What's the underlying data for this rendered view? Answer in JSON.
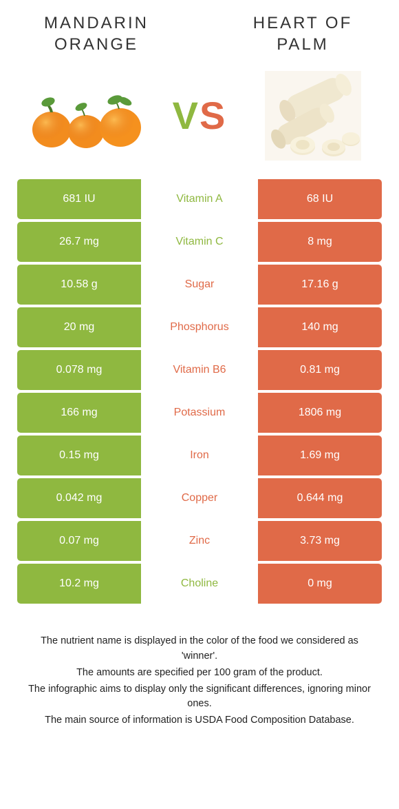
{
  "colors": {
    "green": "#8fb840",
    "orange": "#e06a48",
    "green_dark": "#7ca32f",
    "orange_dark": "#d45b3a"
  },
  "food1": {
    "title": "MANDARIN ORANGE"
  },
  "food2": {
    "title": "HEART OF PALM"
  },
  "vs": {
    "v": "V",
    "s": "S"
  },
  "rows": [
    {
      "left": "681 IU",
      "mid": "Vitamin A",
      "right": "68 IU",
      "winner": "left"
    },
    {
      "left": "26.7 mg",
      "mid": "Vitamin C",
      "right": "8 mg",
      "winner": "left"
    },
    {
      "left": "10.58 g",
      "mid": "Sugar",
      "right": "17.16 g",
      "winner": "right"
    },
    {
      "left": "20 mg",
      "mid": "Phosphorus",
      "right": "140 mg",
      "winner": "right"
    },
    {
      "left": "0.078 mg",
      "mid": "Vitamin B6",
      "right": "0.81 mg",
      "winner": "right"
    },
    {
      "left": "166 mg",
      "mid": "Potassium",
      "right": "1806 mg",
      "winner": "right"
    },
    {
      "left": "0.15 mg",
      "mid": "Iron",
      "right": "1.69 mg",
      "winner": "right"
    },
    {
      "left": "0.042 mg",
      "mid": "Copper",
      "right": "0.644 mg",
      "winner": "right"
    },
    {
      "left": "0.07 mg",
      "mid": "Zinc",
      "right": "3.73 mg",
      "winner": "right"
    },
    {
      "left": "10.2 mg",
      "mid": "Choline",
      "right": "0 mg",
      "winner": "left"
    }
  ],
  "footer": {
    "l1": "The nutrient name is displayed in the color of the food we considered as 'winner'.",
    "l2": "The amounts are specified per 100 gram of the product.",
    "l3": "The infographic aims to display only the significant differences, ignoring minor ones.",
    "l4": "The main source of information is USDA Food Composition Database."
  }
}
